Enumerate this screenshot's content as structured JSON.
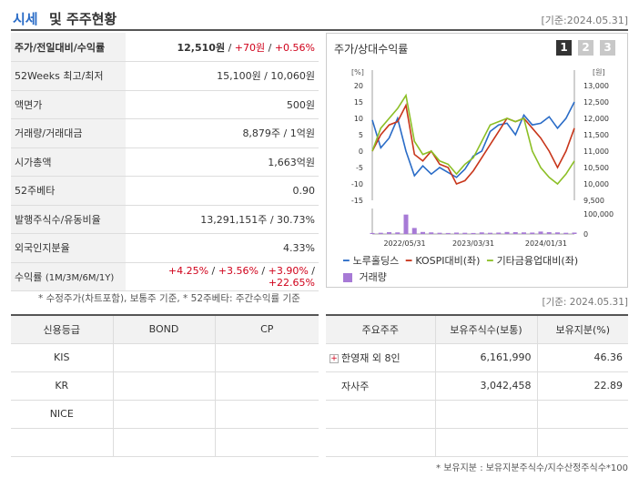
{
  "header": {
    "title_blue": "시세",
    "title_rest": "및 주주현황",
    "date": "[기준:2024.05.31]"
  },
  "info": {
    "rows": [
      {
        "label": "주가/전일대비/수익률",
        "value_main": "12,510원",
        "sep": " / ",
        "value_change": "+70원",
        "sep2": " / ",
        "value_rate": "+0.56%"
      },
      {
        "label": "52Weeks 최고/최저",
        "value": "15,100원 / 10,060원"
      },
      {
        "label": "액면가",
        "value": "500원"
      },
      {
        "label": "거래량/거래대금",
        "value": "8,879주 / 1억원"
      },
      {
        "label": "시가총액",
        "value": "1,663억원"
      },
      {
        "label": "52주베타",
        "value": "0.90"
      },
      {
        "label": "발행주식수/유동비율",
        "value": "13,291,151주 / 30.73%"
      },
      {
        "label": "외국인지분율",
        "value": "4.33%"
      },
      {
        "label_main": "수익률",
        "label_sub": "(1M/3M/6M/1Y)",
        "r1": "+4.25%",
        "r2": "+3.56%",
        "r3": "+3.90%",
        "r4": "+22.65%"
      }
    ]
  },
  "chart": {
    "title": "주가/상대수익률",
    "pages": [
      "1",
      "2",
      "3"
    ],
    "left_unit": "[%]",
    "right_unit": "[원]",
    "legend": {
      "s1": "노루홀딩스",
      "s2": "KOSPI대비(좌)",
      "s3": "기타금융업대비(좌)",
      "s4": "거래량"
    },
    "colors": {
      "s1": "#2a6cc7",
      "s2": "#c8361b",
      "s3": "#8cbf26",
      "s4": "#a77ad6"
    }
  },
  "chart_data": {
    "type": "line",
    "x_ticks": [
      "2022/05/31",
      "2023/03/31",
      "2024/01/31"
    ],
    "y_left_ticks": [
      "20",
      "15",
      "10",
      "5",
      "0",
      "-5",
      "-10",
      "-15"
    ],
    "y_left_range": [
      -15,
      20
    ],
    "y_right_ticks": [
      "13,000",
      "12,500",
      "12,000",
      "11,500",
      "11,000",
      "10,500",
      "10,000",
      "9,500"
    ],
    "y_right_range": [
      9500,
      13000
    ],
    "volume_ticks": [
      "100,000",
      "0"
    ],
    "volume_range": [
      0,
      100000
    ],
    "series": [
      {
        "name": "노루홀딩스",
        "axis": "right",
        "values": [
          11950,
          11100,
          11400,
          12000,
          11000,
          10250,
          10550,
          10300,
          10500,
          10350,
          10200,
          10450,
          10850,
          11000,
          11600,
          11800,
          11850,
          11500,
          12100,
          11800,
          11850,
          12050,
          11700,
          12000,
          12500
        ]
      },
      {
        "name": "KOSPI대비(좌)",
        "axis": "left",
        "values": [
          0,
          5,
          8,
          9,
          14,
          -1,
          -3,
          0,
          -4,
          -5,
          -10,
          -9,
          -6,
          -2,
          2,
          6,
          10,
          9,
          10,
          7,
          4,
          0,
          -5,
          0,
          7
        ]
      },
      {
        "name": "기타금융업대비(좌)",
        "axis": "left",
        "values": [
          0,
          7,
          10,
          13,
          17,
          3,
          -1,
          0,
          -3,
          -4,
          -7,
          -4,
          -2,
          3,
          8,
          9,
          10,
          9,
          10,
          0,
          -5,
          -8,
          -10,
          -7,
          -3
        ]
      },
      {
        "name": "거래량",
        "axis": "volume",
        "values": [
          5000,
          6000,
          9000,
          8000,
          97000,
          30000,
          10000,
          8000,
          6000,
          5000,
          7000,
          6000,
          5000,
          8000,
          6000,
          7000,
          10000,
          9000,
          8000,
          7000,
          12000,
          9000,
          8000,
          6000,
          7000
        ]
      }
    ]
  },
  "notes": {
    "info_note": "* 수정주가(차트포함), 보통주 기준, * 52주베타: 주간수익률 기준",
    "date2": "[기준: 2024.05.31]",
    "holder_note": "* 보유지분 : 보유지분주식수/지수산정주식수*100"
  },
  "credit": {
    "headers": [
      "신용등급",
      "BOND",
      "CP"
    ],
    "rows": [
      [
        "KIS",
        "",
        ""
      ],
      [
        "KR",
        "",
        ""
      ],
      [
        "NICE",
        "",
        ""
      ],
      [
        "",
        "",
        ""
      ]
    ]
  },
  "holders": {
    "headers": [
      "주요주주",
      "보유주식수(보통)",
      "보유지분(%)"
    ],
    "rows": [
      {
        "name": "한영재 외 8인",
        "shares": "6,161,990",
        "pct": "46.36"
      },
      {
        "name": "자사주",
        "shares": "3,042,458",
        "pct": "22.89"
      },
      {
        "name": "",
        "shares": "",
        "pct": ""
      },
      {
        "name": "",
        "shares": "",
        "pct": ""
      }
    ]
  }
}
